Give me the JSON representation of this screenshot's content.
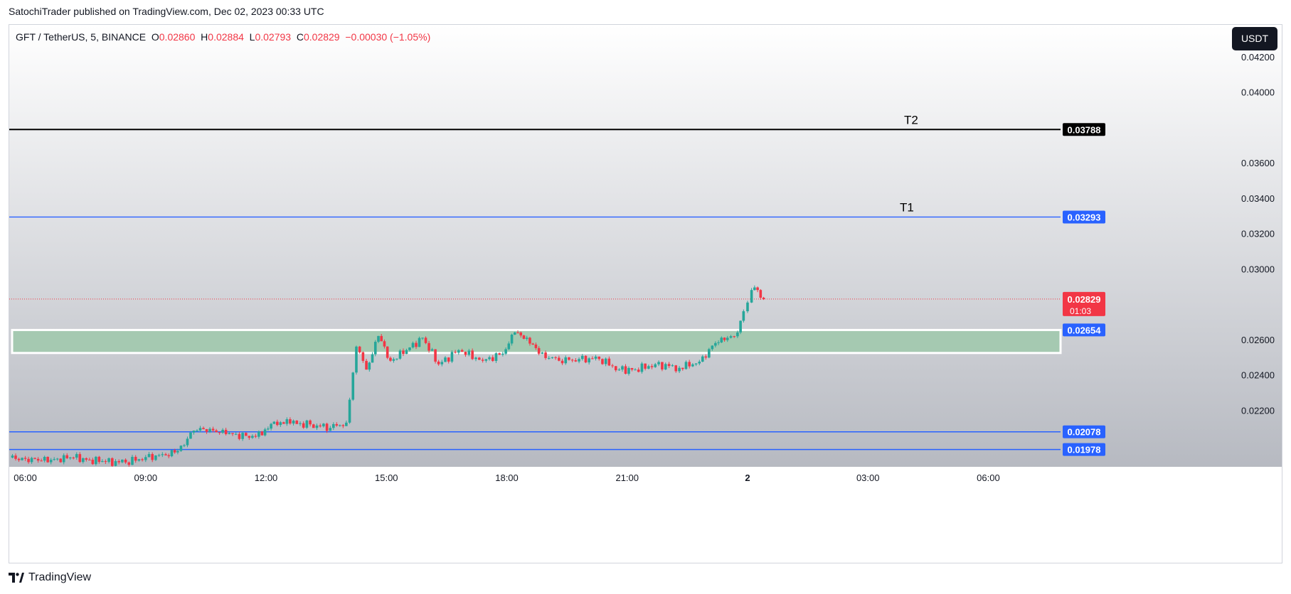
{
  "header": {
    "published_text": "SatochiTrader published on TradingView.com, Dec 02, 2023 00:33 UTC"
  },
  "legend": {
    "symbol": "GFT / TetherUS, 5, BINANCE",
    "o_label": "O",
    "o_value": "0.02860",
    "h_label": "H",
    "h_value": "0.02884",
    "l_label": "L",
    "l_value": "0.02793",
    "c_label": "C",
    "c_value": "0.02829",
    "change": "−0.00030 (−1.05%)"
  },
  "currency_button": "USDT",
  "footer": {
    "brand": "TradingView"
  },
  "colors": {
    "up": "#26a69a",
    "down": "#f23645",
    "blue_line": "#2962ff",
    "zone_fill": "#a5c9b1",
    "text": "#131722"
  },
  "chart_data": {
    "type": "candlestick",
    "symbol": "GFT/USDT",
    "interval": "5",
    "y_axis": {
      "range": [
        0.0188,
        0.0438
      ],
      "tick_labels": [
        "0.04200",
        "0.04000",
        "0.03600",
        "0.03400",
        "0.03200",
        "0.03000",
        "0.02600",
        "0.02400",
        "0.02200"
      ],
      "tick_values": [
        0.042,
        0.04,
        0.036,
        0.034,
        0.032,
        0.03,
        0.026,
        0.024,
        0.022
      ]
    },
    "x_axis": {
      "tick_labels": [
        "06:00",
        "09:00",
        "12:00",
        "15:00",
        "18:00",
        "21:00",
        "2",
        "03:00",
        "06:00"
      ],
      "tick_hours": [
        6,
        9,
        12,
        15,
        18,
        21,
        24,
        27,
        30
      ],
      "range_hours": [
        5.6,
        31.8
      ]
    },
    "horizontal_lines": [
      {
        "label": "T2",
        "price": 0.03788,
        "price_label": "0.03788",
        "color": "#000000"
      },
      {
        "label": "T1",
        "price": 0.03293,
        "price_label": "0.03293",
        "color": "#2962ff"
      },
      {
        "label": "",
        "price": 0.02078,
        "price_label": "0.02078",
        "color": "#2962ff"
      },
      {
        "label": "",
        "price": 0.01978,
        "price_label": "0.01978",
        "color": "#2962ff"
      }
    ],
    "zone": {
      "top": 0.02654,
      "bottom": 0.02524,
      "price_label": "0.02654"
    },
    "last_price": {
      "value": "0.02829",
      "countdown": "01:03",
      "price": 0.02829
    },
    "candles": [
      [
        5.6,
        0.01932
      ],
      [
        6.0,
        0.01925
      ],
      [
        6.4,
        0.01915
      ],
      [
        6.8,
        0.01926
      ],
      [
        7.2,
        0.01932
      ],
      [
        7.6,
        0.0192
      ],
      [
        8.0,
        0.01908
      ],
      [
        8.5,
        0.01905
      ],
      [
        9.0,
        0.01935
      ],
      [
        9.5,
        0.01945
      ],
      [
        9.8,
        0.0197
      ],
      [
        10.2,
        0.02085
      ],
      [
        10.6,
        0.02095
      ],
      [
        11.0,
        0.02065
      ],
      [
        11.5,
        0.02055
      ],
      [
        11.9,
        0.02058
      ],
      [
        12.2,
        0.02135
      ],
      [
        12.6,
        0.02125
      ],
      [
        13.1,
        0.0212
      ],
      [
        13.6,
        0.021
      ],
      [
        14.0,
        0.0213
      ],
      [
        14.25,
        0.0256
      ],
      [
        14.5,
        0.0243
      ],
      [
        14.8,
        0.0262
      ],
      [
        15.1,
        0.0248
      ],
      [
        15.5,
        0.0254
      ],
      [
        15.9,
        0.0261
      ],
      [
        16.3,
        0.0246
      ],
      [
        16.8,
        0.0254
      ],
      [
        17.4,
        0.0248
      ],
      [
        17.9,
        0.0252
      ],
      [
        18.2,
        0.0264
      ],
      [
        18.5,
        0.0261
      ],
      [
        18.8,
        0.0252
      ],
      [
        19.3,
        0.0248
      ],
      [
        19.8,
        0.0249
      ],
      [
        20.3,
        0.0249
      ],
      [
        20.8,
        0.0243
      ],
      [
        21.2,
        0.0243
      ],
      [
        21.7,
        0.0246
      ],
      [
        22.3,
        0.0244
      ],
      [
        22.8,
        0.02475
      ],
      [
        23.2,
        0.0258
      ],
      [
        23.5,
        0.0261
      ],
      [
        23.75,
        0.0264
      ],
      [
        23.9,
        0.0276
      ],
      [
        24.1,
        0.0288
      ],
      [
        24.25,
        0.0288
      ],
      [
        24.4,
        0.02829
      ]
    ]
  }
}
